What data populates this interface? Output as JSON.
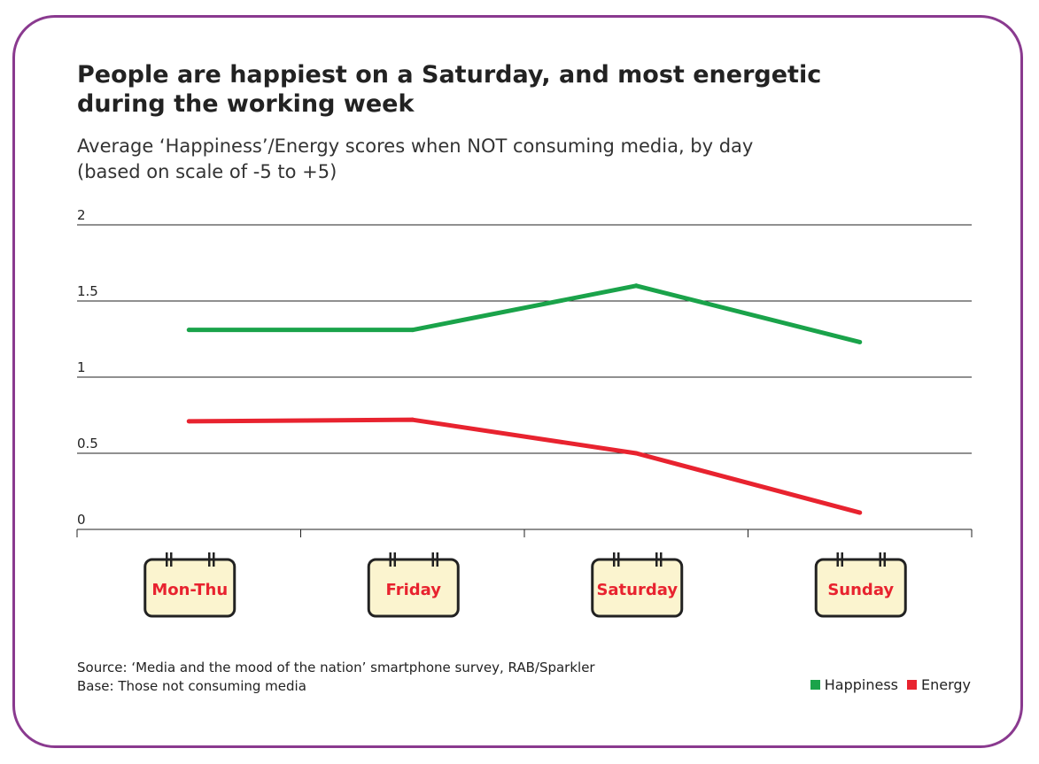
{
  "chart_data": {
    "type": "line",
    "title": "People are happiest on a Saturday, and most energetic during the working week",
    "subtitle_line1": "Average ‘Happiness’/Energy scores when NOT consuming media, by day",
    "subtitle_line2": "(based on scale of -5 to +5)",
    "categories": [
      "Mon-Thu",
      "Friday",
      "Saturday",
      "Sunday"
    ],
    "y_ticks": [
      "0",
      "0.5",
      "1",
      "1.5",
      "2"
    ],
    "y_tick_values": [
      0,
      0.5,
      1,
      1.5,
      2
    ],
    "ylim": [
      0,
      2
    ],
    "grid": true,
    "legend_position": "bottom-right",
    "series": [
      {
        "name": "Happiness",
        "color": "#1aa34a",
        "values": [
          1.31,
          1.31,
          1.6,
          1.23
        ]
      },
      {
        "name": "Energy",
        "color": "#e8232f",
        "values": [
          0.71,
          0.72,
          0.5,
          0.11
        ]
      }
    ]
  },
  "source_line1": "Source: ‘Media and the mood of the nation’ smartphone survey, RAB/Sparkler",
  "source_line2": "Base: Those not consuming media",
  "colors": {
    "border": "#8a3a8f",
    "calendar_fill": "#fbf4cf",
    "calendar_text": "#e8232f"
  }
}
